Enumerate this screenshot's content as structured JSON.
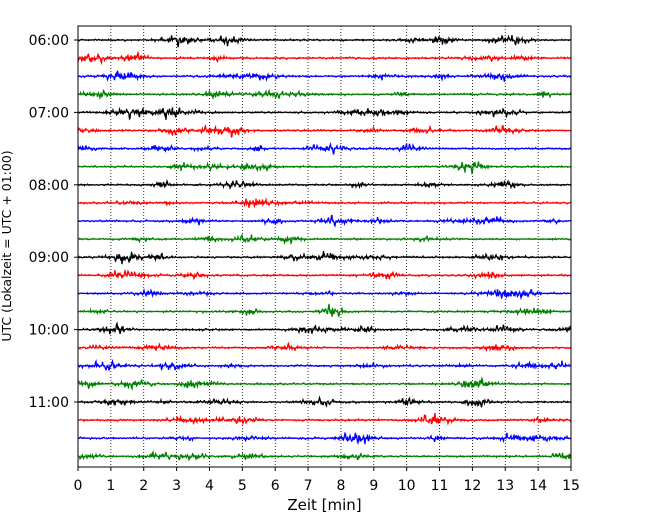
{
  "chart_data": {
    "type": "line",
    "title": "",
    "xlabel": "Zeit  [min]",
    "ylabel": "UTC (Lokalzeit = UTC + 01:00)",
    "xlim": [
      0,
      15
    ],
    "x_ticks": [
      "0",
      "1",
      "2",
      "3",
      "4",
      "5",
      "6",
      "7",
      "8",
      "9",
      "10",
      "11",
      "12",
      "13",
      "14",
      "15"
    ],
    "y_ticks": [
      {
        "label": "06:00",
        "trace": 0
      },
      {
        "label": "07:00",
        "trace": 4
      },
      {
        "label": "08:00",
        "trace": 8
      },
      {
        "label": "09:00",
        "trace": 12
      },
      {
        "label": "10:00",
        "trace": 16
      },
      {
        "label": "11:00",
        "trace": 20
      }
    ],
    "traces_per_hour": 4,
    "trace_minutes": 15,
    "trace_count": 24,
    "trace_colors": [
      "#000000",
      "#ff0000",
      "#0000ff",
      "#007f00"
    ],
    "grid": {
      "vertical": true,
      "style": "dotted"
    }
  }
}
